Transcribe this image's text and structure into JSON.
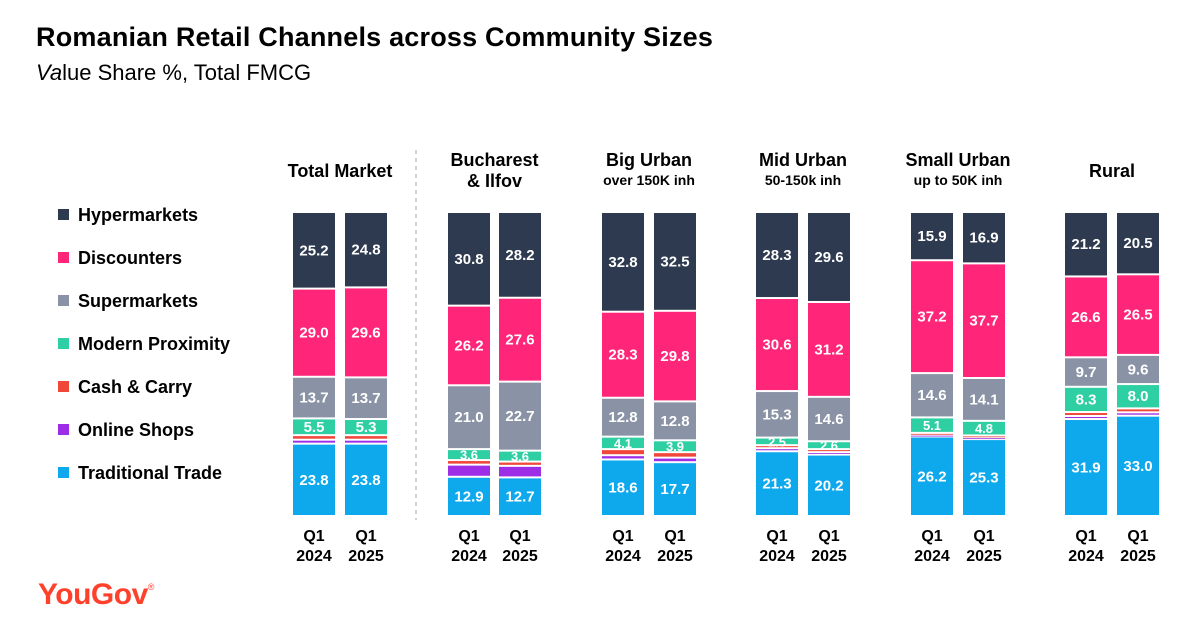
{
  "title": "Romanian Retail Channels across Community Sizes",
  "subtitle_italic": "Va",
  "subtitle_rest": "lue Share %, Total FMCG",
  "brand": {
    "name": "YouGov",
    "mark": "®"
  },
  "colors": {
    "Hypermarkets": "#2e3a4f",
    "Discounters": "#ff2578",
    "Supermarkets": "#8a93a6",
    "Modern Proximity": "#2fcfa4",
    "Cash & Carry": "#f0473a",
    "Online Shops": "#9d2ee6",
    "Traditional Trade": "#0ea8ec"
  },
  "chart_data": {
    "type": "bar",
    "stacked": true,
    "title": "Romanian Retail Channels across Community Sizes",
    "subtitle": "Value Share %, Total FMCG",
    "legend": [
      "Hypermarkets",
      "Discounters",
      "Supermarkets",
      "Modern Proximity",
      "Cash & Carry",
      "Online Shops",
      "Traditional Trade"
    ],
    "stack_order_bottom_to_top": [
      "Traditional Trade",
      "Online Shops",
      "Cash & Carry",
      "Modern Proximity",
      "Supermarkets",
      "Discounters",
      "Hypermarkets"
    ],
    "x_labels": [
      "Q1 2024",
      "Q1 2025"
    ],
    "ylim": [
      0,
      100
    ],
    "groups": [
      {
        "title": [
          "Total Market"
        ],
        "bars": [
          {
            "label": [
              "Q1",
              "2024"
            ],
            "values": {
              "Hypermarkets": 25.2,
              "Discounters": 29.0,
              "Supermarkets": 13.7,
              "Modern Proximity": 5.5,
              "Cash & Carry": 1.5,
              "Online Shops": 1.3,
              "Traditional Trade": 23.8
            },
            "labeled": [
              "Hypermarkets",
              "Discounters",
              "Supermarkets",
              "Modern Proximity",
              "Traditional Trade"
            ]
          },
          {
            "label": [
              "Q1",
              "2025"
            ],
            "values": {
              "Hypermarkets": 24.8,
              "Discounters": 29.6,
              "Supermarkets": 13.7,
              "Modern Proximity": 5.3,
              "Cash & Carry": 1.5,
              "Online Shops": 1.3,
              "Traditional Trade": 23.8
            },
            "labeled": [
              "Hypermarkets",
              "Discounters",
              "Supermarkets",
              "Modern Proximity",
              "Traditional Trade"
            ]
          }
        ]
      },
      {
        "title": [
          "Bucharest",
          "& Ilfov"
        ],
        "bars": [
          {
            "label": [
              "Q1",
              "2024"
            ],
            "values": {
              "Hypermarkets": 30.8,
              "Discounters": 26.2,
              "Supermarkets": 21.0,
              "Modern Proximity": 3.6,
              "Cash & Carry": 1.5,
              "Online Shops": 4.0,
              "Traditional Trade": 12.9
            },
            "labeled": [
              "Hypermarkets",
              "Discounters",
              "Supermarkets",
              "Modern Proximity",
              "Traditional Trade"
            ]
          },
          {
            "label": [
              "Q1",
              "2025"
            ],
            "values": {
              "Hypermarkets": 28.2,
              "Discounters": 27.6,
              "Supermarkets": 22.7,
              "Modern Proximity": 3.6,
              "Cash & Carry": 1.4,
              "Online Shops": 3.8,
              "Traditional Trade": 12.7
            },
            "labeled": [
              "Hypermarkets",
              "Discounters",
              "Supermarkets",
              "Modern Proximity",
              "Traditional Trade"
            ]
          }
        ]
      },
      {
        "title": [
          "Big Urban"
        ],
        "subtitle": "over 150K inh",
        "bars": [
          {
            "label": [
              "Q1",
              "2024"
            ],
            "values": {
              "Hypermarkets": 32.8,
              "Discounters": 28.3,
              "Supermarkets": 12.8,
              "Modern Proximity": 4.1,
              "Cash & Carry": 2.0,
              "Online Shops": 1.4,
              "Traditional Trade": 18.6
            },
            "labeled": [
              "Hypermarkets",
              "Discounters",
              "Supermarkets",
              "Modern Proximity",
              "Traditional Trade"
            ]
          },
          {
            "label": [
              "Q1",
              "2025"
            ],
            "values": {
              "Hypermarkets": 32.5,
              "Discounters": 29.8,
              "Supermarkets": 12.8,
              "Modern Proximity": 3.9,
              "Cash & Carry": 1.8,
              "Online Shops": 1.5,
              "Traditional Trade": 17.7
            },
            "labeled": [
              "Hypermarkets",
              "Discounters",
              "Supermarkets",
              "Modern Proximity",
              "Traditional Trade"
            ]
          }
        ]
      },
      {
        "title": [
          "Mid Urban"
        ],
        "subtitle": "50-150k inh",
        "bars": [
          {
            "label": [
              "Q1",
              "2024"
            ],
            "values": {
              "Hypermarkets": 28.3,
              "Discounters": 30.6,
              "Supermarkets": 15.3,
              "Modern Proximity": 2.5,
              "Cash & Carry": 1.0,
              "Online Shops": 1.0,
              "Traditional Trade": 21.3
            },
            "labeled": [
              "Hypermarkets",
              "Discounters",
              "Supermarkets",
              "Modern Proximity",
              "Traditional Trade"
            ]
          },
          {
            "label": [
              "Q1",
              "2025"
            ],
            "values": {
              "Hypermarkets": 29.6,
              "Discounters": 31.2,
              "Supermarkets": 14.6,
              "Modern Proximity": 2.6,
              "Cash & Carry": 1.0,
              "Online Shops": 0.8,
              "Traditional Trade": 20.2
            },
            "labeled": [
              "Hypermarkets",
              "Discounters",
              "Supermarkets",
              "Modern Proximity",
              "Traditional Trade"
            ]
          }
        ]
      },
      {
        "title": [
          "Small Urban"
        ],
        "subtitle": "up to 50K inh",
        "bars": [
          {
            "label": [
              "Q1",
              "2024"
            ],
            "values": {
              "Hypermarkets": 15.9,
              "Discounters": 37.2,
              "Supermarkets": 14.6,
              "Modern Proximity": 5.1,
              "Cash & Carry": 0.6,
              "Online Shops": 0.6,
              "Traditional Trade": 26.2
            },
            "labeled": [
              "Hypermarkets",
              "Discounters",
              "Supermarkets",
              "Modern Proximity",
              "Traditional Trade"
            ]
          },
          {
            "label": [
              "Q1",
              "2025"
            ],
            "values": {
              "Hypermarkets": 16.9,
              "Discounters": 37.7,
              "Supermarkets": 14.1,
              "Modern Proximity": 4.8,
              "Cash & Carry": 0.6,
              "Online Shops": 0.6,
              "Traditional Trade": 25.3
            },
            "labeled": [
              "Hypermarkets",
              "Discounters",
              "Supermarkets",
              "Modern Proximity",
              "Traditional Trade"
            ]
          }
        ]
      },
      {
        "title": [
          "Rural"
        ],
        "bars": [
          {
            "label": [
              "Q1",
              "2024"
            ],
            "values": {
              "Hypermarkets": 21.2,
              "Discounters": 26.6,
              "Supermarkets": 9.7,
              "Modern Proximity": 8.3,
              "Cash & Carry": 1.3,
              "Online Shops": 1.0,
              "Traditional Trade": 31.9
            },
            "labeled": [
              "Hypermarkets",
              "Discounters",
              "Supermarkets",
              "Modern Proximity",
              "Traditional Trade"
            ]
          },
          {
            "label": [
              "Q1",
              "2025"
            ],
            "values": {
              "Hypermarkets": 20.5,
              "Discounters": 26.5,
              "Supermarkets": 9.6,
              "Modern Proximity": 8.0,
              "Cash & Carry": 1.3,
              "Online Shops": 1.1,
              "Traditional Trade": 33.0
            },
            "labeled": [
              "Hypermarkets",
              "Discounters",
              "Supermarkets",
              "Modern Proximity",
              "Traditional Trade"
            ]
          }
        ]
      }
    ]
  }
}
